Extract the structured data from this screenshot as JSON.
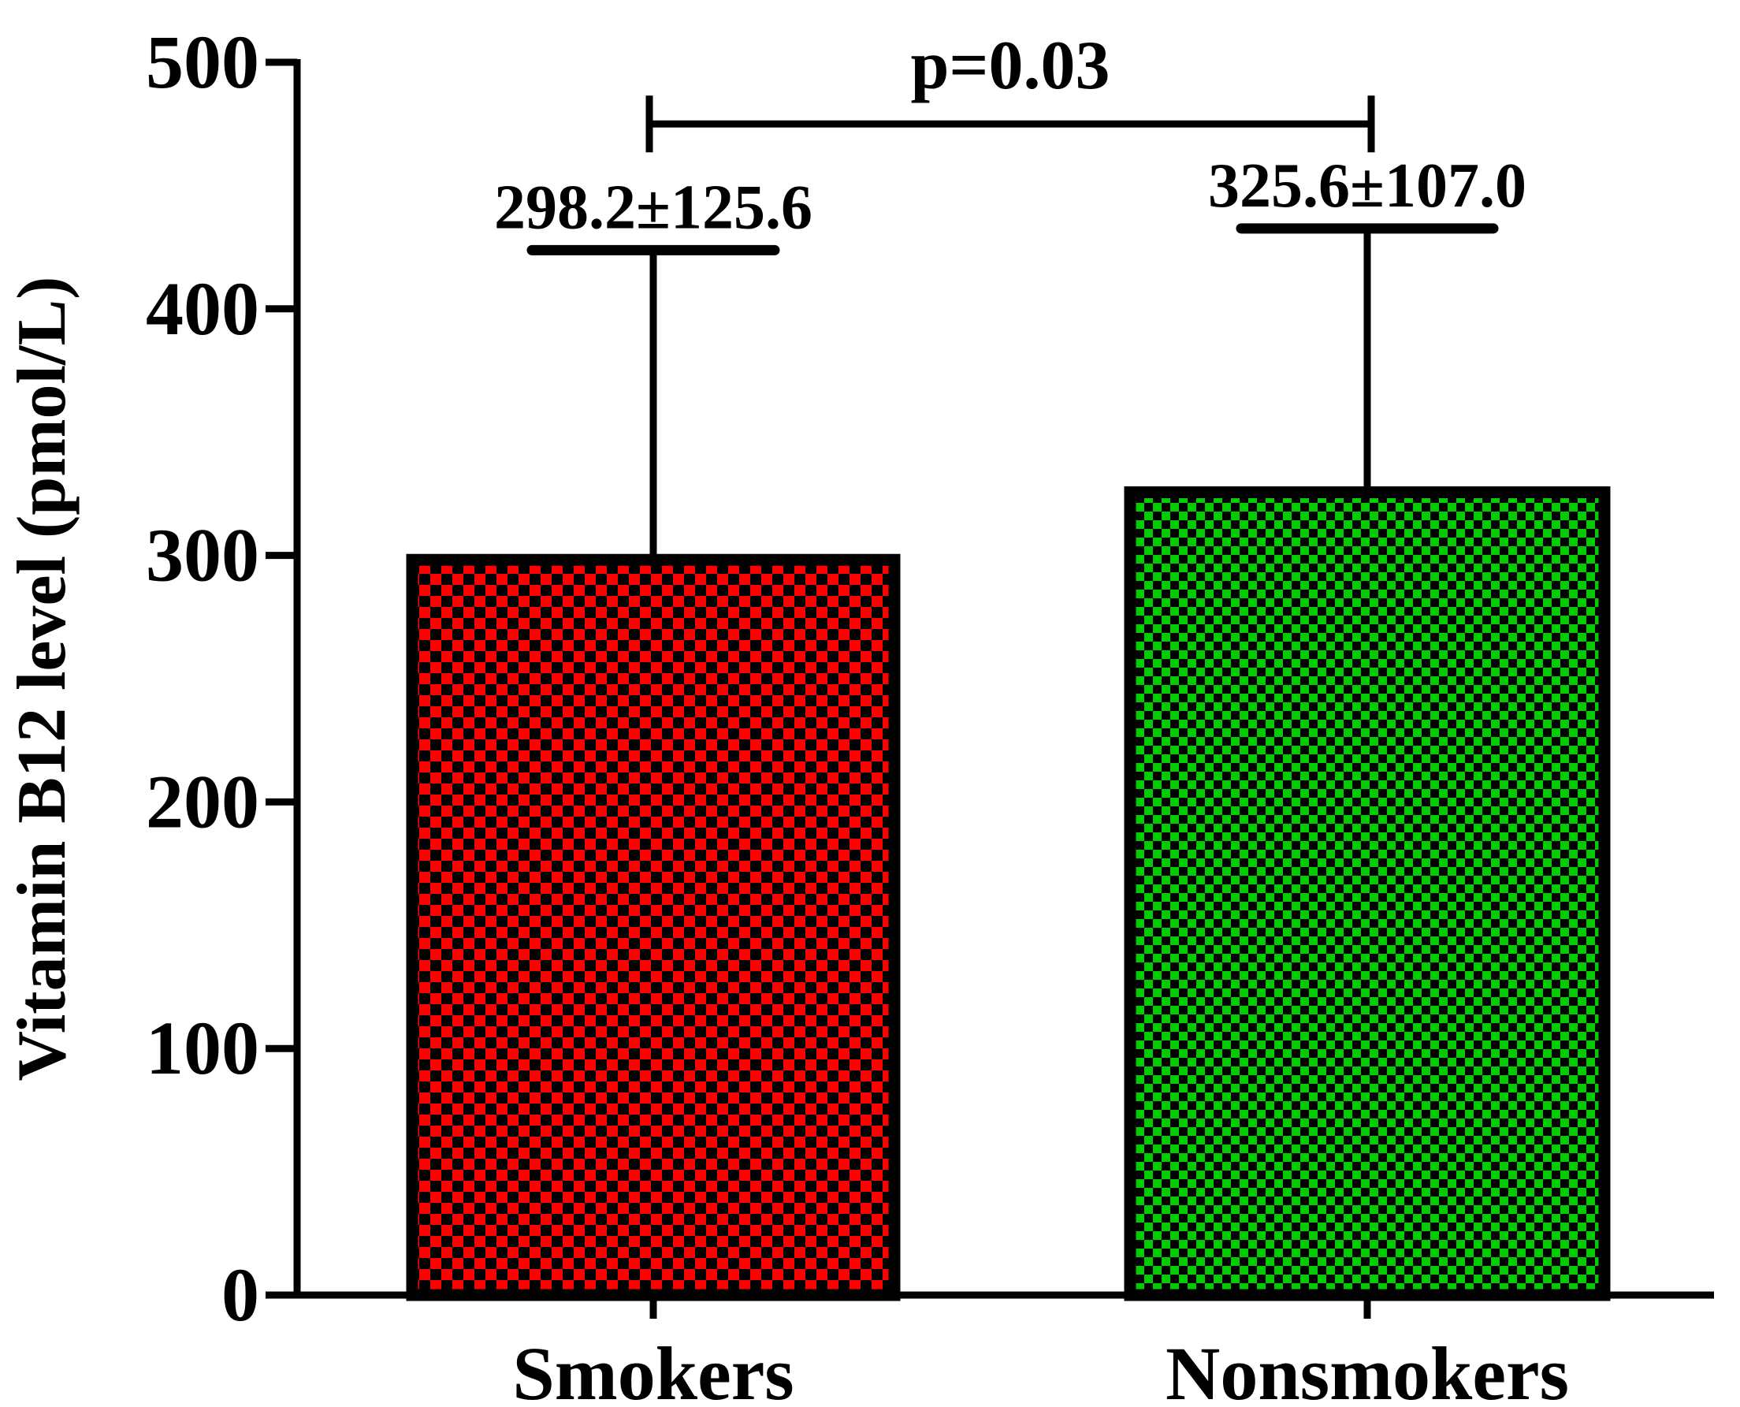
{
  "chart_data": {
    "type": "bar",
    "title": "",
    "xlabel": "",
    "ylabel": "Vitamin B12 level (pmol/L)",
    "ylim": [
      0,
      500
    ],
    "yticks": [
      0,
      100,
      200,
      300,
      400,
      500
    ],
    "ytick_labels": [
      "0",
      "100",
      "200",
      "300",
      "400",
      "500"
    ],
    "grid": false,
    "categories": [
      "Smokers",
      "Nonsmokers"
    ],
    "values": [
      298.2,
      325.6
    ],
    "errors": [
      125.6,
      107.0
    ],
    "value_labels": [
      "298.2±125.6",
      "325.6±107.0"
    ],
    "colors": [
      "#ff0000",
      "#00cc00"
    ],
    "pattern": "checkerboard",
    "pattern_color": "#000000",
    "significance": {
      "label": "p=0.03",
      "between": [
        "Smokers",
        "Nonsmokers"
      ],
      "y": 475
    }
  }
}
